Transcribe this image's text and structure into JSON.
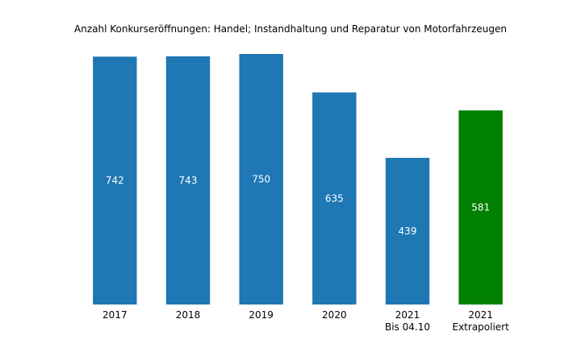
{
  "chart_data": {
    "type": "bar",
    "title": "Anzahl Konkurseröffnungen: Handel; Instandhaltung und Reparatur von Motorfahrzeugen",
    "xlabel": "",
    "ylabel": "",
    "ylim": [
      0,
      750
    ],
    "grid": false,
    "axes_visible": false,
    "categories": [
      [
        "2017"
      ],
      [
        "2018"
      ],
      [
        "2019"
      ],
      [
        "2020"
      ],
      [
        "2021",
        "Bis 04.10"
      ],
      [
        "2021",
        "Extrapoliert"
      ]
    ],
    "values": [
      742,
      743,
      750,
      635,
      439,
      581
    ],
    "value_labels": [
      "742",
      "743",
      "750",
      "635",
      "439",
      "581"
    ],
    "colors": [
      "#1f77b4",
      "#1f77b4",
      "#1f77b4",
      "#1f77b4",
      "#1f77b4",
      "#008000"
    ]
  }
}
